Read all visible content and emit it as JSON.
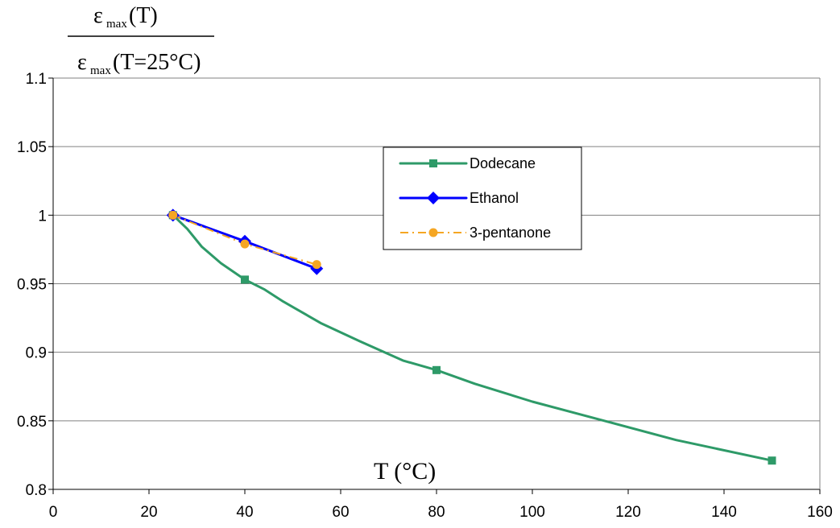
{
  "chart_data": {
    "type": "line",
    "y_title": {
      "numerator": {
        "base": "ε",
        "sub": "max",
        "rest": "(T)"
      },
      "denominator": {
        "base": "ε",
        "sub": "max",
        "rest": "(T=25°C)"
      }
    },
    "x_title": "T (°C)",
    "xlim": [
      0,
      160
    ],
    "ylim": [
      0.8,
      1.1
    ],
    "x_ticks": [
      "0",
      "20",
      "40",
      "60",
      "80",
      "100",
      "120",
      "140",
      "160"
    ],
    "y_ticks": [
      "0.8",
      "0.85",
      "0.9",
      "0.95",
      "1",
      "1.05",
      "1.1"
    ],
    "grid": "horizontal",
    "legend_position": "upper-center",
    "series": [
      {
        "name": "Dodecane",
        "color": "#2E9A68",
        "marker": "square",
        "style": "solid",
        "markers": [
          [
            25,
            1.0
          ],
          [
            40,
            0.953
          ],
          [
            80,
            0.887
          ],
          [
            150,
            0.821
          ]
        ],
        "curve": [
          [
            25,
            1.0
          ],
          [
            28,
            0.99
          ],
          [
            31,
            0.977
          ],
          [
            35,
            0.965
          ],
          [
            40,
            0.953
          ],
          [
            44,
            0.946
          ],
          [
            48,
            0.937
          ],
          [
            56,
            0.921
          ],
          [
            64,
            0.908
          ],
          [
            73,
            0.894
          ],
          [
            80,
            0.887
          ],
          [
            88,
            0.877
          ],
          [
            100,
            0.864
          ],
          [
            115,
            0.85
          ],
          [
            130,
            0.836
          ],
          [
            150,
            0.821
          ]
        ]
      },
      {
        "name": "Ethanol",
        "color": "#0000FF",
        "marker": "diamond",
        "style": "solid",
        "markers": [
          [
            25,
            1.0
          ],
          [
            40,
            0.981
          ],
          [
            55,
            0.961
          ]
        ],
        "curve": [
          [
            25,
            1.0
          ],
          [
            40,
            0.981
          ],
          [
            55,
            0.961
          ]
        ]
      },
      {
        "name": "3-pentanone",
        "color": "#F5A623",
        "marker": "circle",
        "style": "dashdot",
        "markers": [
          [
            25,
            1.0
          ],
          [
            40,
            0.979
          ],
          [
            55,
            0.964
          ]
        ],
        "curve": [
          [
            25,
            1.0
          ],
          [
            40,
            0.979
          ],
          [
            55,
            0.964
          ]
        ]
      }
    ]
  }
}
